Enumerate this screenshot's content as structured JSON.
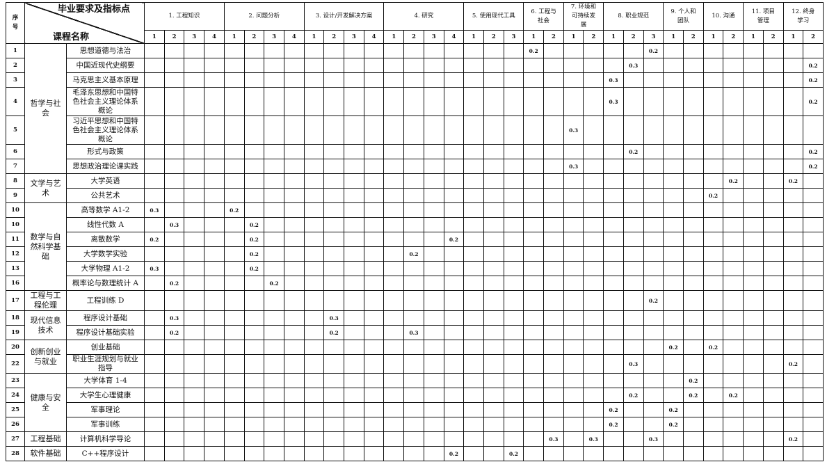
{
  "header": {
    "seq_label": "序号",
    "top_right_label": "毕业要求及指标点",
    "bottom_left_label": "课程名称",
    "requirements": [
      {
        "label": "1. 工程知识",
        "subs": [
          "1",
          "2",
          "3",
          "4"
        ]
      },
      {
        "label": "2. 问题分析",
        "subs": [
          "1",
          "2",
          "3",
          "4"
        ]
      },
      {
        "label": "3. 设计/开发解决方案",
        "subs": [
          "1",
          "2",
          "3",
          "4"
        ]
      },
      {
        "label": "4. 研究",
        "subs": [
          "1",
          "2",
          "3",
          "4"
        ]
      },
      {
        "label": "5. 使用现代工具",
        "subs": [
          "1",
          "2",
          "3"
        ]
      },
      {
        "label": "6. 工程与社会",
        "subs": [
          "1",
          "2"
        ]
      },
      {
        "label": "7. 环境和可持续发展",
        "subs": [
          "1",
          "2"
        ]
      },
      {
        "label": "8. 职业规范",
        "subs": [
          "1",
          "2",
          "3"
        ]
      },
      {
        "label": "9. 个人和团队",
        "subs": [
          "1",
          "2"
        ]
      },
      {
        "label": "10. 沟通",
        "subs": [
          "1",
          "2"
        ]
      },
      {
        "label": "11. 项目管理",
        "subs": [
          "1",
          "2"
        ]
      },
      {
        "label": "12. 终身学习",
        "subs": [
          "1",
          "2"
        ]
      }
    ]
  },
  "categories": [
    {
      "name": "哲学与社会",
      "rows": [
        {
          "seq": "1",
          "course": "思想道德与法治",
          "values": {
            "6.1": "0.2",
            "8.3": "0.2"
          }
        },
        {
          "seq": "2",
          "course": "中国近现代史纲要",
          "values": {
            "8.2": "0.3",
            "12.2": "0.2"
          }
        },
        {
          "seq": "3",
          "course": "马克思主义基本原理",
          "values": {
            "8.1": "0.3",
            "12.2": "0.2"
          }
        },
        {
          "seq": "4",
          "course": "毛泽东思想和中国特色社会主义理论体系概论",
          "values": {
            "8.1": "0.3",
            "12.2": "0.2"
          },
          "tall": true
        },
        {
          "seq": "5",
          "course": "习近平思想和中国特色社会主义理论体系概论",
          "values": {
            "7.1": "0.3"
          },
          "tall": true
        },
        {
          "seq": "6",
          "course": "形式与政策",
          "values": {
            "8.2": "0.2",
            "12.2": "0.2"
          }
        },
        {
          "seq": "7",
          "course": "思想政治理论课实践",
          "values": {
            "7.1": "0.3",
            "12.2": "0.2"
          }
        }
      ]
    },
    {
      "name": "文学与艺术",
      "rows": [
        {
          "seq": "8",
          "course": "大学英语",
          "values": {
            "10.2": "0.2",
            "12.1": "0.2"
          }
        },
        {
          "seq": "9",
          "course": "公共艺术",
          "values": {
            "10.1": "0.2"
          }
        }
      ]
    },
    {
      "name": "数学与自然科学基础",
      "rows": [
        {
          "seq": "10",
          "course": "高等数学 A1-2",
          "values": {
            "1.1": "0.3",
            "2.1": "0.2"
          }
        },
        {
          "seq": "10",
          "course": "线性代数 A",
          "values": {
            "1.2": "0.3",
            "2.2": "0.2"
          }
        },
        {
          "seq": "11",
          "course": "离散数学",
          "values": {
            "1.1": "0.2",
            "2.2": "0.2",
            "4.4": "0.2"
          }
        },
        {
          "seq": "12",
          "course": "大学数学实验",
          "values": {
            "2.2": "0.2",
            "4.2": "0.2"
          }
        },
        {
          "seq": "13",
          "course": "大学物理 A1-2",
          "values": {
            "1.1": "0.3",
            "2.2": "0.2"
          }
        },
        {
          "seq": "16",
          "course": "概率论与数理统计 A",
          "values": {
            "1.2": "0.2",
            "2.3": "0.2"
          }
        }
      ]
    },
    {
      "name": "工程与工程伦理",
      "rows": [
        {
          "seq": "17",
          "course": "工程训练 D",
          "values": {
            "8.3": "0.2"
          },
          "mid": true
        }
      ]
    },
    {
      "name": "现代信息技术",
      "rows": [
        {
          "seq": "18",
          "course": "程序设计基础",
          "values": {
            "1.2": "0.3",
            "3.2": "0.3"
          }
        },
        {
          "seq": "19",
          "course": "程序设计基础实验",
          "values": {
            "1.2": "0.2",
            "3.2": "0.2",
            "4.2": "0.3"
          }
        }
      ]
    },
    {
      "name": "创新创业与就业",
      "rows": [
        {
          "seq": "20",
          "course": "创业基础",
          "values": {
            "9.1": "0.2",
            "10.1": "0.2"
          }
        },
        {
          "seq": "22",
          "course": "职业生涯规划与就业指导",
          "values": {
            "8.2": "0.3",
            "12.1": "0.2"
          },
          "mid": true
        }
      ]
    },
    {
      "name": "健康与安全",
      "rows": [
        {
          "seq": "23",
          "course": "大学体育 1-4",
          "values": {
            "9.2": "0.2"
          }
        },
        {
          "seq": "24",
          "course": "大学生心理健康",
          "values": {
            "8.2": "0.2",
            "9.2": "0.2",
            "10.2": "0.2"
          }
        },
        {
          "seq": "25",
          "course": "军事理论",
          "values": {
            "8.1": "0.2",
            "9.1": "0.2"
          }
        },
        {
          "seq": "26",
          "course": "军事训练",
          "values": {
            "8.1": "0.2",
            "9.1": "0.2"
          }
        }
      ]
    },
    {
      "name": "工程基础",
      "rows": [
        {
          "seq": "27",
          "course": "计算机科学导论",
          "values": {
            "6.2": "0.3",
            "7.2": "0.3",
            "8.3": "0.3",
            "12.1": "0.2"
          }
        }
      ]
    },
    {
      "name": "软件基础",
      "rows": [
        {
          "seq": "28",
          "course": "C++程序设计",
          "values": {
            "4.4": "0.2",
            "5.3": "0.2"
          }
        }
      ]
    }
  ]
}
